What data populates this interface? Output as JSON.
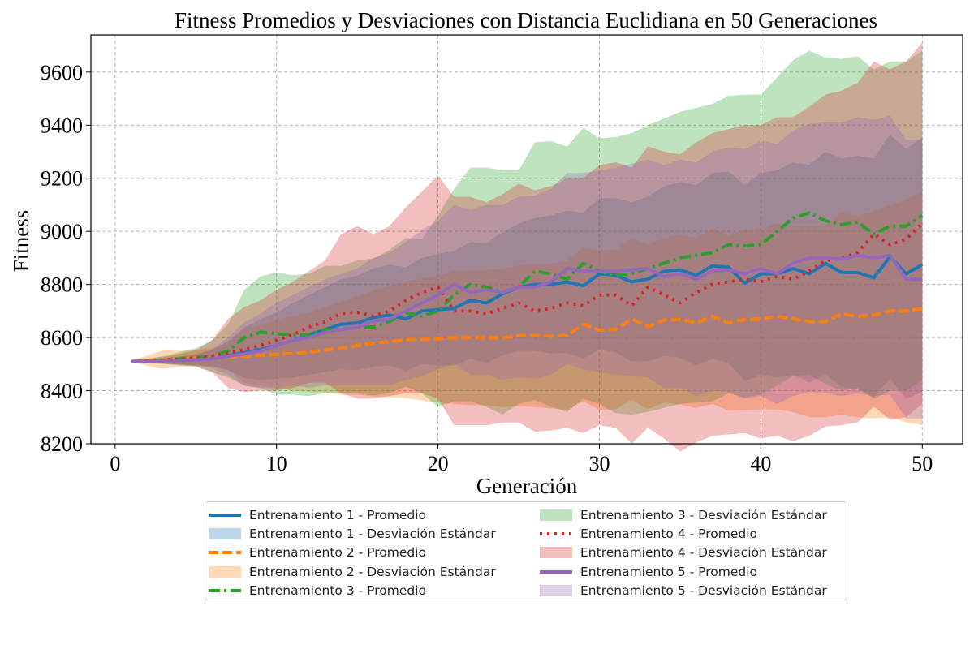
{
  "chart_data": {
    "type": "line",
    "title": "Fitness Promedios y Desviaciones con Distancia Euclidiana en 50 Generaciones",
    "xlabel": "Generación",
    "ylabel": "Fitness",
    "xlim": [
      -1.5,
      52.5
    ],
    "ylim": [
      8200,
      9740
    ],
    "xticks": [
      0,
      10,
      20,
      30,
      40,
      50
    ],
    "yticks": [
      8200,
      8400,
      8600,
      8800,
      9000,
      9200,
      9400,
      9600
    ],
    "grid": true,
    "legend_placement": "bottom-center-outside",
    "x": [
      1,
      2,
      3,
      4,
      5,
      6,
      7,
      8,
      9,
      10,
      11,
      12,
      13,
      14,
      15,
      16,
      17,
      18,
      19,
      20,
      21,
      22,
      23,
      24,
      25,
      26,
      27,
      28,
      29,
      30,
      31,
      32,
      33,
      34,
      35,
      36,
      37,
      38,
      39,
      40,
      41,
      42,
      43,
      44,
      45,
      46,
      47,
      48,
      49,
      50
    ],
    "series": [
      {
        "name": "Entrenamiento 1 - Promedio",
        "band_name": "Entrenamiento 1 - Desviación Estándar",
        "color": "#1f77b4",
        "dash": "solid",
        "values": [
          8510,
          8510,
          8512,
          8514,
          8516,
          8522,
          8532,
          8543,
          8555,
          8570,
          8590,
          8610,
          8630,
          8650,
          8655,
          8675,
          8685,
          8670,
          8700,
          8705,
          8710,
          8740,
          8730,
          8765,
          8790,
          8800,
          8800,
          8810,
          8795,
          8840,
          8835,
          8810,
          8820,
          8850,
          8855,
          8835,
          8870,
          8865,
          8805,
          8840,
          8840,
          8860,
          8840,
          8880,
          8845,
          8845,
          8825,
          8905,
          8840,
          8875
        ],
        "std": [
          0,
          5,
          10,
          15,
          20,
          30,
          55,
          95,
          115,
          125,
          140,
          150,
          160,
          170,
          178,
          185,
          190,
          195,
          200,
          210,
          215,
          220,
          225,
          232,
          240,
          250,
          260,
          268,
          275,
          285,
          290,
          300,
          310,
          320,
          330,
          340,
          350,
          360,
          370,
          380,
          390,
          400,
          410,
          420,
          430,
          440,
          450,
          460,
          470,
          480
        ]
      },
      {
        "name": "Entrenamiento 2 - Promedio",
        "band_name": "Entrenamiento 2 - Desviación Estándar",
        "color": "#ff7f0e",
        "dash": "dashed",
        "values": [
          8510,
          8513,
          8517,
          8520,
          8523,
          8525,
          8528,
          8530,
          8533,
          8537,
          8540,
          8545,
          8553,
          8560,
          8570,
          8578,
          8585,
          8592,
          8593,
          8595,
          8600,
          8600,
          8600,
          8598,
          8607,
          8608,
          8605,
          8608,
          8650,
          8628,
          8630,
          8670,
          8640,
          8665,
          8668,
          8655,
          8680,
          8655,
          8668,
          8670,
          8680,
          8670,
          8660,
          8660,
          8690,
          8680,
          8685,
          8700,
          8700,
          8710
        ],
        "std": [
          0,
          20,
          35,
          30,
          30,
          35,
          50,
          100,
          115,
          130,
          140,
          150,
          160,
          175,
          185,
          200,
          210,
          220,
          230,
          240,
          250,
          255,
          255,
          260,
          265,
          270,
          272,
          280,
          290,
          300,
          300,
          305,
          310,
          310,
          320,
          320,
          330,
          330,
          340,
          340,
          350,
          350,
          360,
          360,
          380,
          380,
          390,
          400,
          420,
          440
        ]
      },
      {
        "name": "Entrenamiento 3 - Promedio",
        "band_name": "Entrenamiento 3 - Desviación Estándar",
        "color": "#2ca02c",
        "dash": "dashdot",
        "values": [
          8510,
          8512,
          8515,
          8520,
          8525,
          8530,
          8550,
          8600,
          8620,
          8615,
          8610,
          8610,
          8630,
          8630,
          8640,
          8640,
          8660,
          8695,
          8680,
          8700,
          8760,
          8800,
          8790,
          8770,
          8790,
          8850,
          8840,
          8820,
          8880,
          8850,
          8835,
          8840,
          8860,
          8880,
          8900,
          8910,
          8920,
          8950,
          8945,
          8950,
          9000,
          9050,
          9070,
          9040,
          9025,
          9035,
          8990,
          9020,
          9020,
          9060
        ],
        "std": [
          0,
          8,
          15,
          25,
          35,
          60,
          100,
          180,
          210,
          230,
          225,
          230,
          240,
          240,
          250,
          258,
          270,
          280,
          290,
          360,
          400,
          440,
          450,
          460,
          440,
          485,
          500,
          500,
          510,
          500,
          520,
          530,
          540,
          545,
          550,
          555,
          560,
          560,
          570,
          565,
          580,
          595,
          610,
          615,
          625,
          625,
          620,
          620,
          620,
          620
        ]
      },
      {
        "name": "Entrenamiento 4 - Promedio",
        "band_name": "Entrenamiento 4 - Desviación Estándar",
        "color": "#d62728",
        "dash": "dotted",
        "values": [
          8510,
          8512,
          8515,
          8518,
          8522,
          8530,
          8540,
          8555,
          8570,
          8590,
          8610,
          8640,
          8660,
          8690,
          8695,
          8680,
          8700,
          8740,
          8770,
          8790,
          8700,
          8700,
          8690,
          8710,
          8730,
          8700,
          8710,
          8730,
          8720,
          8760,
          8760,
          8720,
          8790,
          8760,
          8730,
          8770,
          8800,
          8810,
          8820,
          8810,
          8830,
          8820,
          8850,
          8890,
          8900,
          8920,
          8990,
          8950,
          8970,
          9030
        ],
        "std": [
          0,
          8,
          12,
          20,
          30,
          60,
          130,
          160,
          170,
          190,
          200,
          210,
          230,
          300,
          325,
          310,
          320,
          350,
          380,
          420,
          430,
          430,
          420,
          430,
          450,
          455,
          460,
          470,
          480,
          490,
          500,
          520,
          530,
          540,
          560,
          565,
          570,
          575,
          580,
          590,
          600,
          610,
          620,
          625,
          630,
          640,
          650,
          660,
          670,
          680
        ]
      },
      {
        "name": "Entrenamiento 5 - Promedio",
        "band_name": "Entrenamiento 5 - Desviación Estándar",
        "color": "#9467bd",
        "dash": "solid",
        "values": [
          8510,
          8510,
          8511,
          8513,
          8516,
          8520,
          8530,
          8538,
          8550,
          8570,
          8590,
          8600,
          8620,
          8630,
          8640,
          8660,
          8670,
          8700,
          8730,
          8760,
          8800,
          8770,
          8780,
          8770,
          8790,
          8790,
          8810,
          8860,
          8850,
          8850,
          8850,
          8855,
          8860,
          8830,
          8840,
          8820,
          8850,
          8855,
          8840,
          8860,
          8840,
          8880,
          8900,
          8900,
          8895,
          8910,
          8900,
          8910,
          8820,
          8820
        ],
        "std": [
          0,
          5,
          10,
          15,
          20,
          35,
          70,
          120,
          140,
          160,
          170,
          190,
          200,
          210,
          220,
          240,
          250,
          260,
          275,
          280,
          300,
          310,
          320,
          330,
          340,
          345,
          350,
          360,
          370,
          380,
          390,
          400,
          410,
          420,
          430,
          440,
          450,
          460,
          470,
          480,
          490,
          500,
          505,
          510,
          515,
          520,
          520,
          525,
          525,
          525
        ]
      }
    ]
  }
}
